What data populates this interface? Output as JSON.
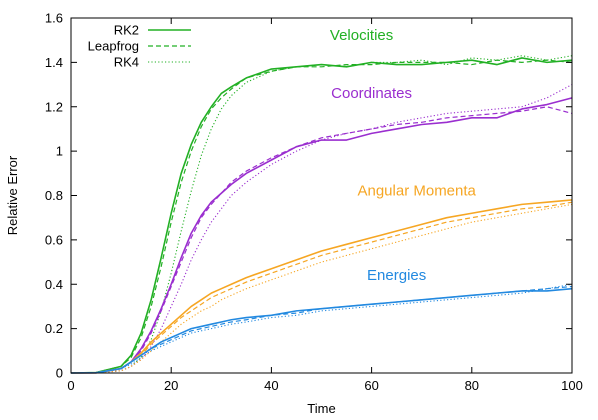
{
  "chart_data": {
    "type": "line",
    "title": "",
    "xlabel": "Time",
    "ylabel": "Relative Error",
    "xlim": [
      0,
      100
    ],
    "ylim": [
      0,
      1.6
    ],
    "xticks": [
      0,
      20,
      40,
      60,
      80,
      100
    ],
    "yticks": [
      0,
      0.2,
      0.4,
      0.6,
      0.8,
      1,
      1.2,
      1.4,
      1.6
    ],
    "ytick_labels": [
      "0",
      "0.2",
      "0.4",
      "0.6",
      "0.8",
      "1",
      "1.2",
      "1.4",
      "1.6"
    ],
    "grid": false,
    "legend": {
      "position": "top-left",
      "entries": [
        {
          "label": "RK2",
          "dash": "solid"
        },
        {
          "label": "Leapfrog",
          "dash": "dashed"
        },
        {
          "label": "RK4",
          "dash": "dotted"
        }
      ]
    },
    "x": [
      0,
      5,
      10,
      12,
      14,
      16,
      18,
      20,
      22,
      24,
      26,
      28,
      30,
      32,
      35,
      40,
      45,
      50,
      55,
      60,
      65,
      70,
      75,
      80,
      85,
      90,
      95,
      100
    ],
    "groups": [
      {
        "name": "Velocities",
        "color": "#22b024",
        "annotation": {
          "text": "Velocities",
          "x": 58,
          "y": 1.5
        },
        "series": [
          {
            "integrator": "RK2",
            "dash": "solid",
            "y": [
              0,
              0.002,
              0.03,
              0.08,
              0.18,
              0.33,
              0.52,
              0.72,
              0.9,
              1.03,
              1.13,
              1.2,
              1.26,
              1.29,
              1.33,
              1.37,
              1.38,
              1.39,
              1.38,
              1.4,
              1.39,
              1.39,
              1.4,
              1.41,
              1.39,
              1.42,
              1.4,
              1.41
            ]
          },
          {
            "integrator": "Leapfrog",
            "dash": "dashed",
            "y": [
              0,
              0.002,
              0.03,
              0.07,
              0.16,
              0.3,
              0.48,
              0.68,
              0.86,
              1.0,
              1.11,
              1.19,
              1.24,
              1.28,
              1.33,
              1.36,
              1.38,
              1.38,
              1.39,
              1.39,
              1.4,
              1.4,
              1.4,
              1.39,
              1.41,
              1.4,
              1.41,
              1.4
            ]
          },
          {
            "integrator": "RK4",
            "dash": "dotted",
            "y": [
              0,
              0.001,
              0.01,
              0.03,
              0.07,
              0.15,
              0.28,
              0.45,
              0.64,
              0.82,
              0.98,
              1.1,
              1.19,
              1.25,
              1.31,
              1.36,
              1.38,
              1.39,
              1.38,
              1.4,
              1.4,
              1.41,
              1.39,
              1.42,
              1.41,
              1.43,
              1.41,
              1.43
            ]
          }
        ]
      },
      {
        "name": "Coordinates",
        "color": "#9a2ecf",
        "annotation": {
          "text": "Coordinates",
          "x": 60,
          "y": 1.24
        },
        "series": [
          {
            "integrator": "RK2",
            "dash": "solid",
            "y": [
              0,
              0.001,
              0.02,
              0.05,
              0.11,
              0.19,
              0.29,
              0.4,
              0.52,
              0.63,
              0.71,
              0.77,
              0.81,
              0.85,
              0.9,
              0.96,
              1.02,
              1.05,
              1.05,
              1.08,
              1.1,
              1.12,
              1.13,
              1.15,
              1.15,
              1.19,
              1.21,
              1.24
            ]
          },
          {
            "integrator": "Leapfrog",
            "dash": "dashed",
            "y": [
              0,
              0.001,
              0.02,
              0.05,
              0.1,
              0.18,
              0.28,
              0.39,
              0.5,
              0.61,
              0.7,
              0.76,
              0.81,
              0.86,
              0.91,
              0.97,
              1.02,
              1.06,
              1.08,
              1.1,
              1.12,
              1.13,
              1.15,
              1.16,
              1.17,
              1.18,
              1.2,
              1.17
            ]
          },
          {
            "integrator": "RK4",
            "dash": "dotted",
            "y": [
              0,
              0.001,
              0.01,
              0.03,
              0.06,
              0.12,
              0.2,
              0.3,
              0.4,
              0.51,
              0.6,
              0.68,
              0.74,
              0.8,
              0.86,
              0.94,
              1.0,
              1.05,
              1.08,
              1.1,
              1.13,
              1.15,
              1.17,
              1.18,
              1.19,
              1.2,
              1.24,
              1.3
            ]
          }
        ]
      },
      {
        "name": "Angular Momenta",
        "color": "#f6a623",
        "annotation": {
          "text": "Angular Momenta",
          "x": 69,
          "y": 0.8
        },
        "series": [
          {
            "integrator": "RK2",
            "dash": "solid",
            "y": [
              0,
              0.001,
              0.02,
              0.05,
              0.09,
              0.14,
              0.18,
              0.22,
              0.26,
              0.3,
              0.33,
              0.36,
              0.38,
              0.4,
              0.43,
              0.47,
              0.51,
              0.55,
              0.58,
              0.61,
              0.64,
              0.67,
              0.7,
              0.72,
              0.74,
              0.76,
              0.77,
              0.78
            ]
          },
          {
            "integrator": "Leapfrog",
            "dash": "dashed",
            "y": [
              0,
              0.001,
              0.02,
              0.05,
              0.08,
              0.13,
              0.17,
              0.21,
              0.25,
              0.28,
              0.31,
              0.34,
              0.36,
              0.38,
              0.41,
              0.45,
              0.49,
              0.53,
              0.56,
              0.59,
              0.62,
              0.65,
              0.68,
              0.7,
              0.72,
              0.74,
              0.75,
              0.77
            ]
          },
          {
            "integrator": "RK4",
            "dash": "dotted",
            "y": [
              0,
              0.001,
              0.01,
              0.03,
              0.06,
              0.1,
              0.14,
              0.18,
              0.22,
              0.25,
              0.28,
              0.3,
              0.33,
              0.35,
              0.38,
              0.42,
              0.46,
              0.5,
              0.53,
              0.56,
              0.59,
              0.62,
              0.65,
              0.68,
              0.7,
              0.72,
              0.74,
              0.76
            ]
          }
        ]
      },
      {
        "name": "Energies",
        "color": "#2289e0",
        "annotation": {
          "text": "Energies",
          "x": 65,
          "y": 0.42
        },
        "series": [
          {
            "integrator": "RK2",
            "dash": "solid",
            "y": [
              0,
              0.001,
              0.02,
              0.05,
              0.08,
              0.11,
              0.14,
              0.16,
              0.18,
              0.2,
              0.21,
              0.22,
              0.23,
              0.24,
              0.25,
              0.26,
              0.28,
              0.29,
              0.3,
              0.31,
              0.32,
              0.33,
              0.34,
              0.35,
              0.36,
              0.37,
              0.37,
              0.38
            ]
          },
          {
            "integrator": "Leapfrog",
            "dash": "dashed",
            "y": [
              0,
              0.001,
              0.02,
              0.05,
              0.08,
              0.11,
              0.13,
              0.15,
              0.17,
              0.19,
              0.2,
              0.21,
              0.22,
              0.23,
              0.24,
              0.26,
              0.27,
              0.29,
              0.3,
              0.31,
              0.32,
              0.33,
              0.34,
              0.35,
              0.36,
              0.37,
              0.38,
              0.39
            ]
          },
          {
            "integrator": "RK4",
            "dash": "dotted",
            "y": [
              0,
              0.001,
              0.02,
              0.04,
              0.07,
              0.1,
              0.12,
              0.14,
              0.16,
              0.18,
              0.19,
              0.2,
              0.21,
              0.22,
              0.23,
              0.25,
              0.26,
              0.28,
              0.29,
              0.3,
              0.31,
              0.32,
              0.33,
              0.34,
              0.35,
              0.36,
              0.38,
              0.4
            ]
          }
        ]
      }
    ]
  }
}
